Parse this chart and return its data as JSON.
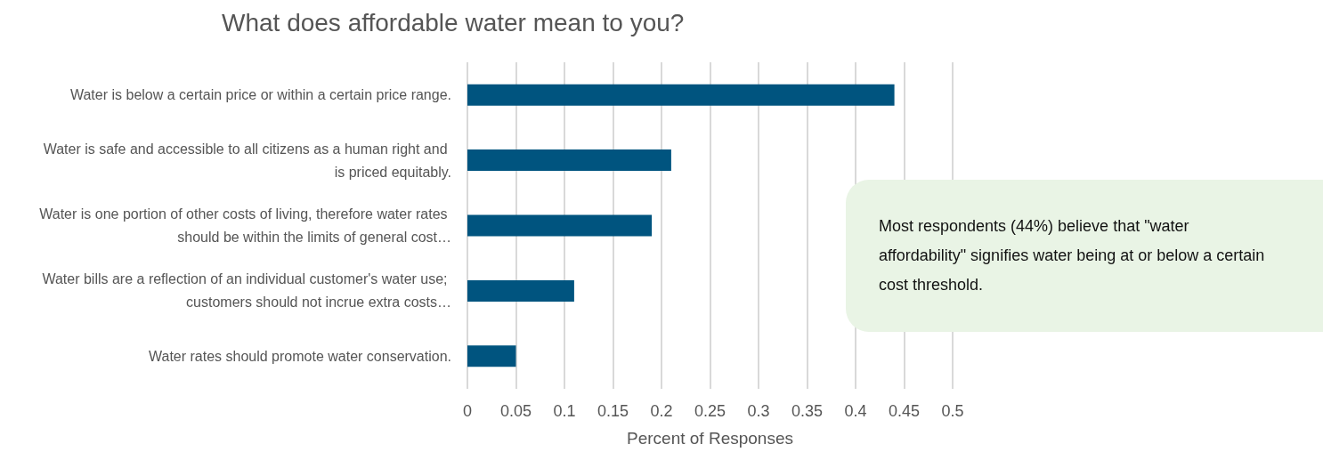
{
  "chart_data": {
    "type": "bar",
    "orientation": "horizontal",
    "title": "What does affordable water mean to you?",
    "xlabel": "Percent of Responses",
    "categories": [
      "Water is below a certain price or within a certain price range.",
      "Water is safe and accessible to all citizens as a human right and is priced equitably.",
      "Water is one portion of other costs of living, therefore water rates should be within the limits of general cost…",
      "Water bills are a reflection of an individual customer's water use; customers should not incrue extra costs…",
      "Water rates should promote water conservation."
    ],
    "values": [
      0.44,
      0.21,
      0.19,
      0.11,
      0.05
    ],
    "color": "#00547f",
    "xlim": [
      0,
      0.5
    ],
    "xticks": [
      0,
      0.05,
      0.1,
      0.15,
      0.2,
      0.25,
      0.3,
      0.35,
      0.4,
      0.45,
      0.5
    ],
    "grid": "x",
    "annotations": [
      "Most respondents (44%) believe that \"water affordability\" signifies water being at or below a certain cost threshold."
    ]
  }
}
